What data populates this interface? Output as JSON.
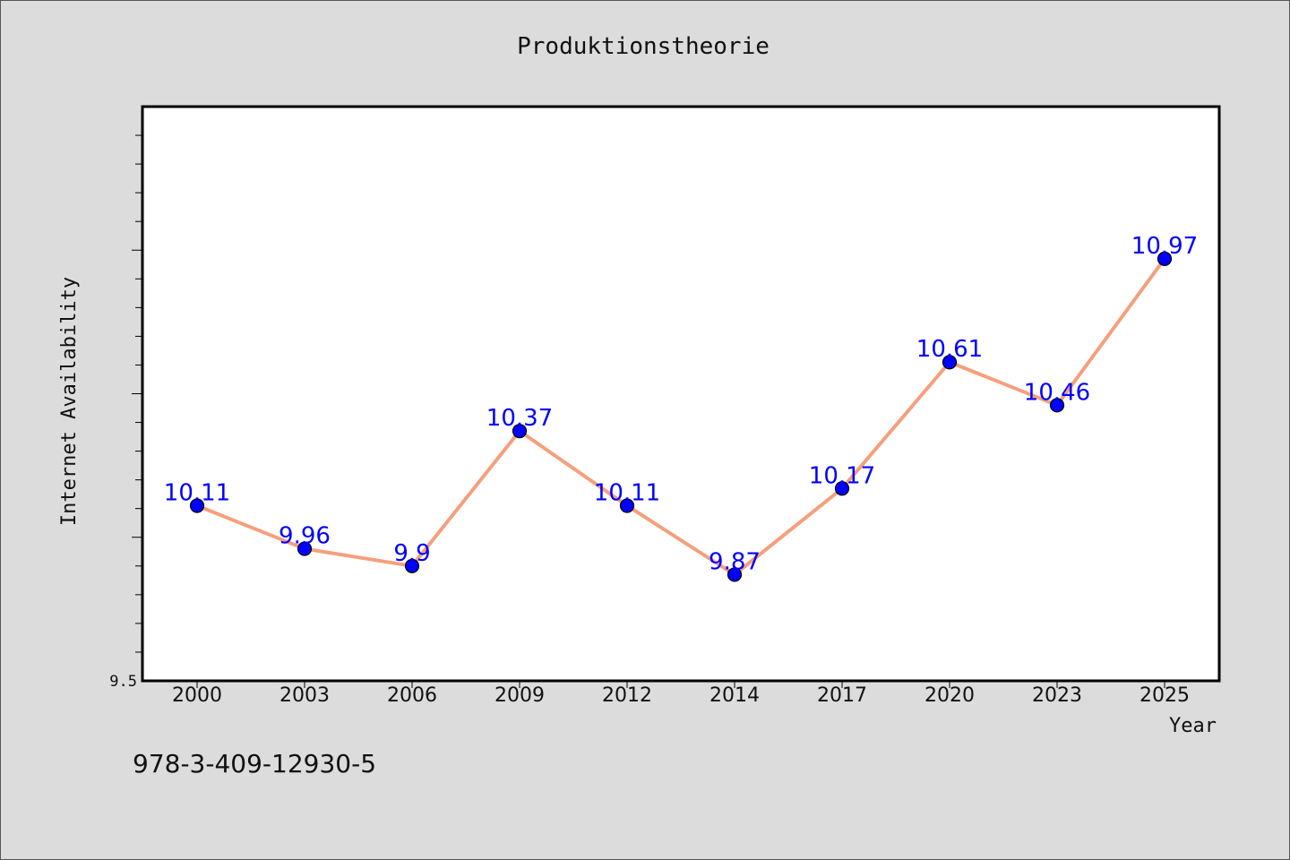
{
  "chart_data": {
    "type": "line",
    "title": "Produktionstheorie",
    "xlabel": "Year",
    "ylabel": "Internet Availability",
    "categories": [
      "2000",
      "2003",
      "2006",
      "2009",
      "2012",
      "2014",
      "2017",
      "2020",
      "2023",
      "2025"
    ],
    "series": [
      {
        "values": [
          10.11,
          9.96,
          9.9,
          10.37,
          10.11,
          9.87,
          10.17,
          10.61,
          10.46,
          10.97
        ],
        "data_labels": [
          "10.11",
          "9.96",
          "9.9",
          "10.37",
          "10.11",
          "9.87",
          "10.17",
          "10.61",
          "10.46",
          "10.97"
        ]
      }
    ],
    "ylim": [
      9.5,
      11.5
    ],
    "ytick_labels": [
      "9.5"
    ],
    "grid": false,
    "line_color": "#f4a07c",
    "marker_color": "#0000ff",
    "label_color": "#0000ff"
  },
  "footer": {
    "isbn": "978-3-409-12930-5"
  }
}
